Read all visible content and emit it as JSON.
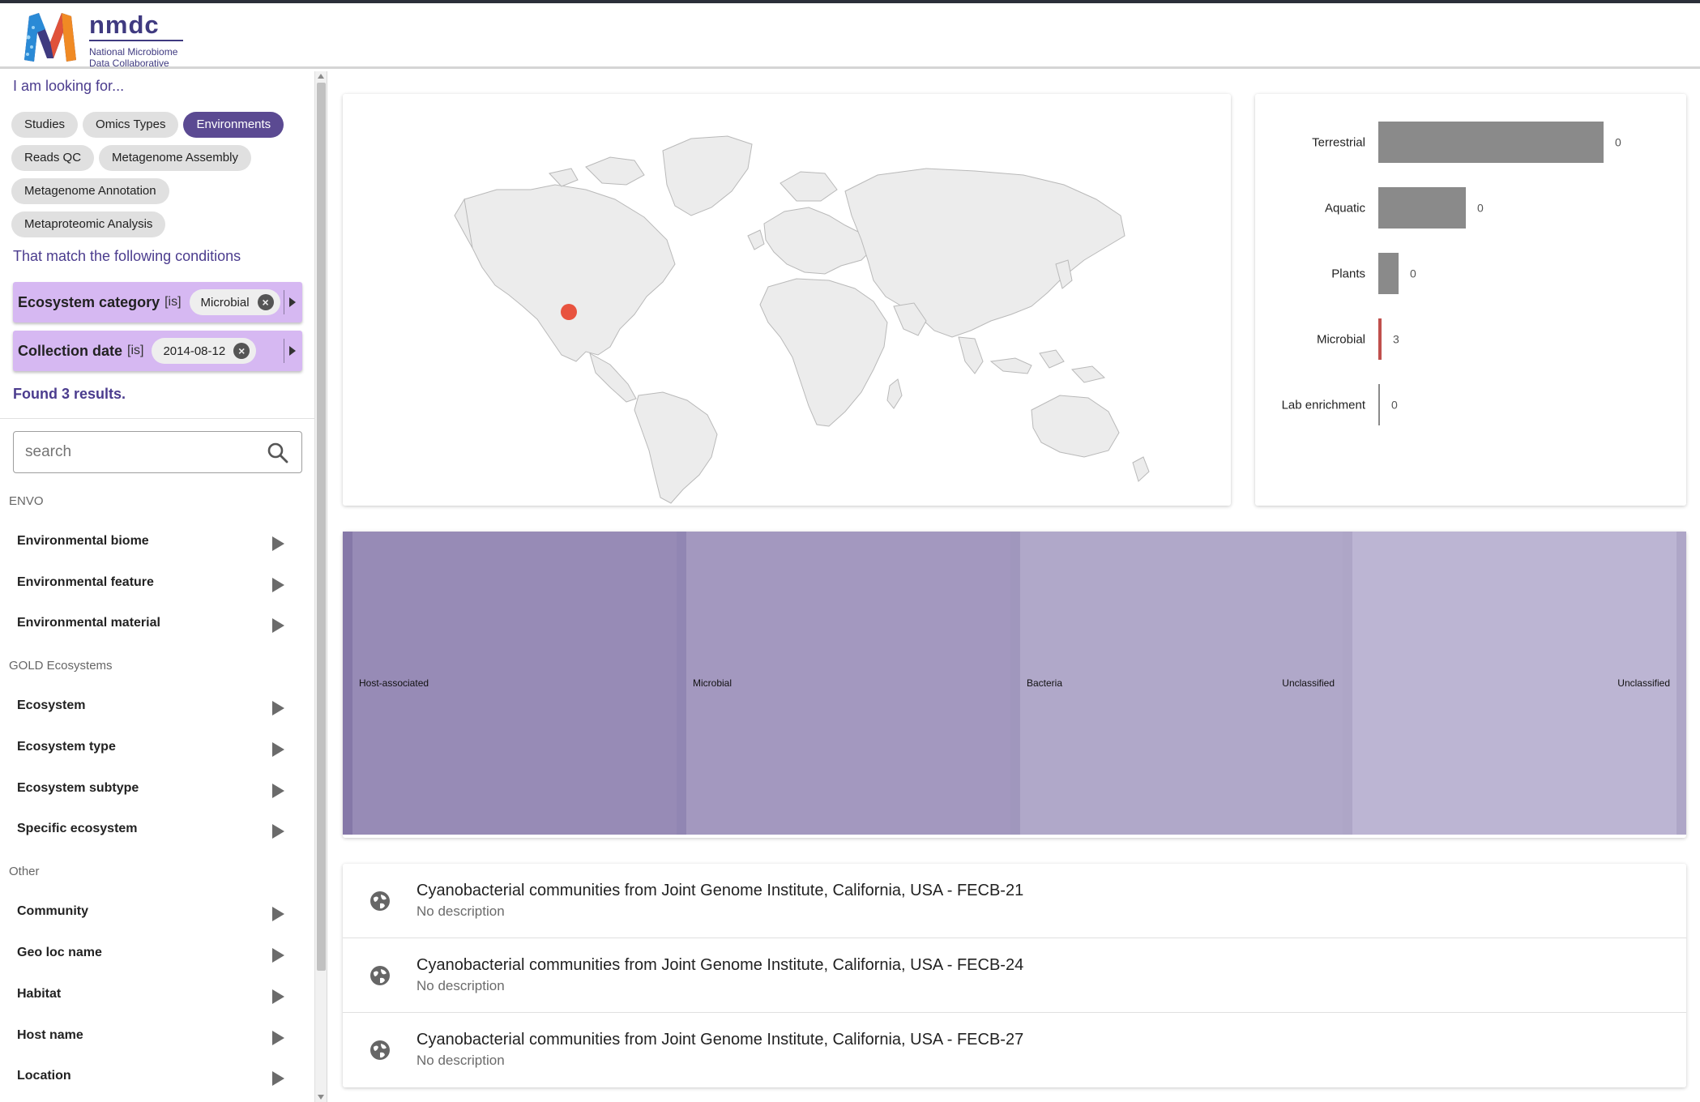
{
  "header": {
    "logo_name": "nmdc",
    "logo_sub_line1": "National Microbiome",
    "logo_sub_line2": "Data Collaborative",
    "brand_colors": {
      "navy": "#3f3a80",
      "orange": "#f08a24",
      "blue": "#2a8ad6",
      "purple": "#5b4a92"
    }
  },
  "sidebar": {
    "looking_for_label": "I am looking for...",
    "chips": [
      {
        "label": "Studies",
        "active": false
      },
      {
        "label": "Omics Types",
        "active": false
      },
      {
        "label": "Environments",
        "active": true
      },
      {
        "label": "Reads QC",
        "active": false
      },
      {
        "label": "Metagenome Assembly",
        "active": false
      },
      {
        "label": "Metagenome Annotation",
        "active": false
      },
      {
        "label": "Metaproteomic Analysis",
        "active": false
      }
    ],
    "conditions_label": "That match the following conditions",
    "conditions": [
      {
        "field": "Ecosystem category",
        "op": "[is]",
        "value": "Microbial"
      },
      {
        "field": "Collection date",
        "op": "[is]",
        "value": "2014-08-12"
      }
    ],
    "found_text": "Found 3 results.",
    "search": {
      "placeholder": "search",
      "value": ""
    },
    "groups": [
      {
        "label": "ENVO",
        "items": [
          "Environmental biome",
          "Environmental feature",
          "Environmental material"
        ]
      },
      {
        "label": "GOLD Ecosystems",
        "items": [
          "Ecosystem",
          "Ecosystem type",
          "Ecosystem subtype",
          "Specific ecosystem"
        ]
      },
      {
        "label": "Other",
        "items": [
          "Community",
          "Geo loc name",
          "Habitat",
          "Host name",
          "Location"
        ]
      }
    ]
  },
  "map": {
    "marker_color": "#e8533f",
    "land_color": "#ececec",
    "border_color": "#b9b9b9"
  },
  "chart_data": {
    "type": "bar",
    "orientation": "horizontal",
    "categories": [
      "Terrestrial",
      "Aquatic",
      "Plants",
      "Microbial",
      "Lab enrichment"
    ],
    "values": [
      0,
      0,
      0,
      3,
      0
    ],
    "highlight_category": "Microbial",
    "bar_color": "#8a8a8a",
    "highlight_color": "#c0504d",
    "value_labels": [
      "0",
      "0",
      "0",
      "3",
      "0"
    ]
  },
  "treemap": {
    "tiles": [
      {
        "label": "Host-associated",
        "sublabel": "",
        "color": "#978bb6",
        "strip": "#8578a8"
      },
      {
        "label": "Microbial",
        "sublabel": "",
        "color": "#a398bf",
        "strip": "#9186b3"
      },
      {
        "label": "Bacteria",
        "sublabel": "Unclassified",
        "color": "#b0a8c9",
        "strip": "#a097bd"
      },
      {
        "label": "",
        "sublabel": "Unclassified",
        "color": "#bcb5d3",
        "strip": "#aea6c7"
      }
    ]
  },
  "results": [
    {
      "title": "Cyanobacterial communities from Joint Genome Institute, California, USA - FECB-21",
      "description": "No description"
    },
    {
      "title": "Cyanobacterial communities from Joint Genome Institute, California, USA - FECB-24",
      "description": "No description"
    },
    {
      "title": "Cyanobacterial communities from Joint Genome Institute, California, USA - FECB-27",
      "description": "No description"
    }
  ]
}
